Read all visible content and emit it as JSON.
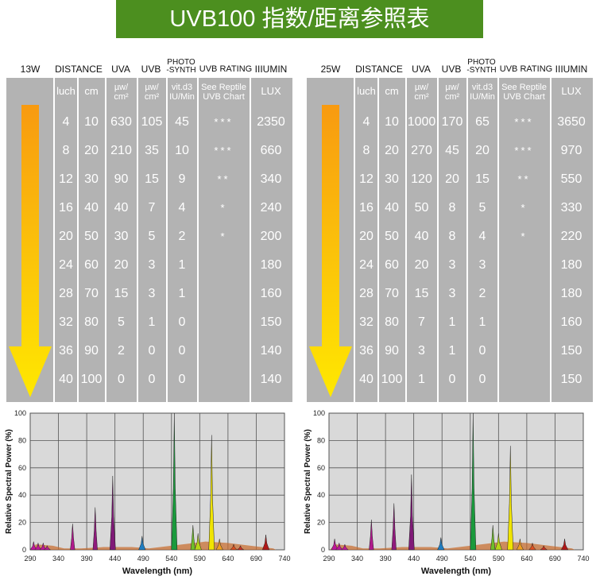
{
  "title": "UVB100 指数/距离参照表",
  "tables": [
    {
      "wattage": "13W",
      "headers": {
        "distance": "DISTANCE",
        "uva": "UVA",
        "uvb": "UVB",
        "photo": "PHOTO",
        "photo2": "-SYNTH",
        "rating": "UVB RATING",
        "lumin": "IIIUMIN"
      },
      "sub": {
        "inch": "luch",
        "cm": "cm",
        "uva1": "µw/",
        "uva2": "cm²",
        "uvb1": "µw/",
        "uvb2": "cm²",
        "vit1": "vit.d3",
        "vit2": "IU/Min",
        "see1": "See Reptile",
        "see2": "UVB Chart",
        "lux": "LUX"
      },
      "rows": [
        [
          "4",
          "10",
          "630",
          "105",
          "45",
          "***",
          "2350"
        ],
        [
          "8",
          "20",
          "210",
          "35",
          "10",
          "***",
          "660"
        ],
        [
          "12",
          "30",
          "90",
          "15",
          "9",
          "**",
          "340"
        ],
        [
          "16",
          "40",
          "40",
          "7",
          "4",
          "*",
          "240"
        ],
        [
          "20",
          "50",
          "30",
          "5",
          "2",
          "*",
          "200"
        ],
        [
          "24",
          "60",
          "20",
          "3",
          "1",
          "",
          "180"
        ],
        [
          "28",
          "70",
          "15",
          "3",
          "1",
          "",
          "160"
        ],
        [
          "32",
          "80",
          "5",
          "1",
          "0",
          "",
          "150"
        ],
        [
          "36",
          "90",
          "2",
          "0",
          "0",
          "",
          "140"
        ],
        [
          "40",
          "100",
          "0",
          "0",
          "0",
          "",
          "140"
        ]
      ]
    },
    {
      "wattage": "25W",
      "headers": {
        "distance": "DISTANCE",
        "uva": "UVA",
        "uvb": "UVB",
        "photo": "PHOTO",
        "photo2": "-SYNTH",
        "rating": "UVB RATING",
        "lumin": "IIIUMIN"
      },
      "sub": {
        "inch": "luch",
        "cm": "cm",
        "uva1": "µw/",
        "uva2": "cm²",
        "uvb1": "µw/",
        "uvb2": "cm²",
        "vit1": "vit.d3",
        "vit2": "IU/Min",
        "see1": "See Reptile",
        "see2": "UVB Chart",
        "lux": "LUX"
      },
      "rows": [
        [
          "4",
          "10",
          "1000",
          "170",
          "65",
          "***",
          "3650"
        ],
        [
          "8",
          "20",
          "270",
          "45",
          "20",
          "***",
          "970"
        ],
        [
          "12",
          "30",
          "120",
          "20",
          "15",
          "**",
          "550"
        ],
        [
          "16",
          "40",
          "50",
          "8",
          "5",
          "*",
          "330"
        ],
        [
          "20",
          "50",
          "40",
          "8",
          "4",
          "*",
          "220"
        ],
        [
          "24",
          "60",
          "20",
          "3",
          "3",
          "",
          "180"
        ],
        [
          "28",
          "70",
          "15",
          "3",
          "2",
          "",
          "180"
        ],
        [
          "32",
          "80",
          "7",
          "1",
          "1",
          "",
          "160"
        ],
        [
          "36",
          "90",
          "3",
          "1",
          "0",
          "",
          "150"
        ],
        [
          "40",
          "100",
          "1",
          "0",
          "0",
          "",
          "150"
        ]
      ]
    }
  ],
  "chart_data": [
    {
      "type": "area",
      "title": "",
      "xlabel": "Wavelength (nm)",
      "ylabel": "Relative Spectral Power (%)",
      "xlim": [
        290,
        740
      ],
      "ylim": [
        0,
        100
      ],
      "xticks": [
        290,
        340,
        390,
        440,
        490,
        540,
        590,
        640,
        690,
        740
      ],
      "yticks": [
        0,
        20,
        40,
        60,
        80,
        100
      ],
      "grid": true,
      "peaks": [
        {
          "x": 296,
          "y": 6,
          "color": "#c0169a"
        },
        {
          "x": 304,
          "y": 5,
          "color": "#c0169a"
        },
        {
          "x": 313,
          "y": 5,
          "color": "#c0169a"
        },
        {
          "x": 320,
          "y": 3,
          "color": "#c0169a"
        },
        {
          "x": 365,
          "y": 19,
          "color": "#b01a8c"
        },
        {
          "x": 405,
          "y": 31,
          "color": "#901a7c"
        },
        {
          "x": 436,
          "y": 54,
          "color": "#801a78"
        },
        {
          "x": 488,
          "y": 10,
          "color": "#1e7dc2"
        },
        {
          "x": 545,
          "y": 100,
          "color": "#1a9a3c"
        },
        {
          "x": 578,
          "y": 18,
          "color": "#6fbf2a"
        },
        {
          "x": 587,
          "y": 12,
          "color": "#b8d418"
        },
        {
          "x": 611,
          "y": 84,
          "color": "#f0e400"
        },
        {
          "x": 625,
          "y": 8,
          "color": "#f0a020"
        },
        {
          "x": 650,
          "y": 4,
          "color": "#e05020"
        },
        {
          "x": 662,
          "y": 3,
          "color": "#d03020"
        },
        {
          "x": 707,
          "y": 11,
          "color": "#b01818"
        }
      ]
    },
    {
      "type": "area",
      "title": "",
      "xlabel": "Wavelength (nm)",
      "ylabel": "Relative Spectral Power (%)",
      "xlim": [
        290,
        740
      ],
      "ylim": [
        0,
        100
      ],
      "xticks": [
        290,
        340,
        390,
        440,
        490,
        540,
        590,
        640,
        690,
        740
      ],
      "yticks": [
        0,
        20,
        40,
        60,
        80,
        100
      ],
      "grid": true,
      "peaks": [
        {
          "x": 300,
          "y": 8,
          "color": "#c0169a"
        },
        {
          "x": 308,
          "y": 5,
          "color": "#c0169a"
        },
        {
          "x": 318,
          "y": 4,
          "color": "#c0169a"
        },
        {
          "x": 365,
          "y": 22,
          "color": "#b01a8c"
        },
        {
          "x": 405,
          "y": 34,
          "color": "#901a7c"
        },
        {
          "x": 436,
          "y": 55,
          "color": "#801a78"
        },
        {
          "x": 488,
          "y": 9,
          "color": "#1e7dc2"
        },
        {
          "x": 545,
          "y": 100,
          "color": "#1a9a3c"
        },
        {
          "x": 580,
          "y": 18,
          "color": "#6fbf2a"
        },
        {
          "x": 590,
          "y": 12,
          "color": "#b8d418"
        },
        {
          "x": 611,
          "y": 76,
          "color": "#f0e400"
        },
        {
          "x": 628,
          "y": 8,
          "color": "#f0a020"
        },
        {
          "x": 650,
          "y": 5,
          "color": "#e05020"
        },
        {
          "x": 670,
          "y": 3,
          "color": "#d03020"
        },
        {
          "x": 707,
          "y": 8,
          "color": "#b01818"
        }
      ]
    }
  ]
}
